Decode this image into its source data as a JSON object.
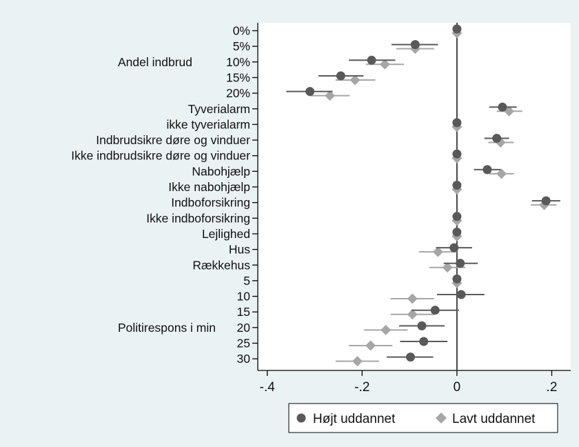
{
  "chart_data": {
    "type": "scatter",
    "orientation": "horizontal-coefficient-plot",
    "title": "",
    "xlabel": "",
    "ylabel": "",
    "xlim": [
      -0.42,
      0.24
    ],
    "xticks": [
      {
        "value": -0.4,
        "label": "-.4"
      },
      {
        "value": -0.2,
        "label": "-.2"
      },
      {
        "value": 0,
        "label": "0"
      },
      {
        "value": 0.2,
        "label": ".2"
      }
    ],
    "reference_line_x": 0,
    "categories": [
      "0%",
      "5%",
      "10%",
      "15%",
      "20%",
      "Tyverialarm",
      "ikke tyverialarm",
      "Indbrudsikre døre og vinduer",
      "Ikke indbrudsikre døre og vinduer",
      "Nabohjælp",
      "Ikke nabohjælp",
      "Indboforsikring",
      "Ikke indboforsikring",
      "Lejlighed",
      "Hus",
      "Rækkehus",
      "5",
      "10",
      "15",
      "20",
      "25",
      "30"
    ],
    "groups": [
      {
        "label": "Andel indbrud",
        "center_index": 2
      },
      {
        "label": "Politirespons i min",
        "center_index": 19
      }
    ],
    "series": [
      {
        "name": "Højt uddannet",
        "marker": "circle",
        "color": "#595959",
        "points": [
          {
            "estimate": 0.0,
            "lo": 0.0,
            "hi": 0.0
          },
          {
            "estimate": -0.088,
            "lo": -0.138,
            "hi": -0.04
          },
          {
            "estimate": -0.18,
            "lo": -0.228,
            "hi": -0.13
          },
          {
            "estimate": -0.245,
            "lo": -0.292,
            "hi": -0.197
          },
          {
            "estimate": -0.31,
            "lo": -0.36,
            "hi": -0.262
          },
          {
            "estimate": 0.096,
            "lo": 0.068,
            "hi": 0.126
          },
          {
            "estimate": 0.0,
            "lo": 0.0,
            "hi": 0.0
          },
          {
            "estimate": 0.084,
            "lo": 0.058,
            "hi": 0.11
          },
          {
            "estimate": 0.0,
            "lo": 0.0,
            "hi": 0.0
          },
          {
            "estimate": 0.064,
            "lo": 0.036,
            "hi": 0.092
          },
          {
            "estimate": 0.0,
            "lo": 0.0,
            "hi": 0.0
          },
          {
            "estimate": 0.188,
            "lo": 0.158,
            "hi": 0.218
          },
          {
            "estimate": 0.0,
            "lo": 0.0,
            "hi": 0.0
          },
          {
            "estimate": 0.0,
            "lo": 0.0,
            "hi": 0.0
          },
          {
            "estimate": -0.006,
            "lo": -0.044,
            "hi": 0.032
          },
          {
            "estimate": 0.007,
            "lo": -0.028,
            "hi": 0.044
          },
          {
            "estimate": 0.0,
            "lo": 0.0,
            "hi": 0.0
          },
          {
            "estimate": 0.009,
            "lo": -0.042,
            "hi": 0.058
          },
          {
            "estimate": -0.046,
            "lo": -0.096,
            "hi": 0.004
          },
          {
            "estimate": -0.074,
            "lo": -0.122,
            "hi": -0.026
          },
          {
            "estimate": -0.07,
            "lo": -0.12,
            "hi": -0.02
          },
          {
            "estimate": -0.098,
            "lo": -0.148,
            "hi": -0.05
          }
        ]
      },
      {
        "name": "Lavt uddannet",
        "marker": "diamond",
        "color": "#a6a6a6",
        "points": [
          {
            "estimate": 0.0,
            "lo": 0.0,
            "hi": 0.0
          },
          {
            "estimate": -0.088,
            "lo": -0.128,
            "hi": -0.048
          },
          {
            "estimate": -0.152,
            "lo": -0.192,
            "hi": -0.112
          },
          {
            "estimate": -0.215,
            "lo": -0.256,
            "hi": -0.172
          },
          {
            "estimate": -0.268,
            "lo": -0.31,
            "hi": -0.226
          },
          {
            "estimate": 0.11,
            "lo": 0.084,
            "hi": 0.138
          },
          {
            "estimate": 0.0,
            "lo": 0.0,
            "hi": 0.0
          },
          {
            "estimate": 0.092,
            "lo": 0.066,
            "hi": 0.12
          },
          {
            "estimate": 0.0,
            "lo": 0.0,
            "hi": 0.0
          },
          {
            "estimate": 0.094,
            "lo": 0.068,
            "hi": 0.12
          },
          {
            "estimate": 0.0,
            "lo": 0.0,
            "hi": 0.0
          },
          {
            "estimate": 0.184,
            "lo": 0.156,
            "hi": 0.21
          },
          {
            "estimate": 0.0,
            "lo": 0.0,
            "hi": 0.0
          },
          {
            "estimate": 0.0,
            "lo": 0.0,
            "hi": 0.0
          },
          {
            "estimate": -0.04,
            "lo": -0.08,
            "hi": 0.0
          },
          {
            "estimate": -0.02,
            "lo": -0.058,
            "hi": 0.018
          },
          {
            "estimate": 0.0,
            "lo": 0.0,
            "hi": 0.0
          },
          {
            "estimate": -0.094,
            "lo": -0.14,
            "hi": -0.048
          },
          {
            "estimate": -0.094,
            "lo": -0.14,
            "hi": -0.048
          },
          {
            "estimate": -0.15,
            "lo": -0.196,
            "hi": -0.104
          },
          {
            "estimate": -0.182,
            "lo": -0.228,
            "hi": -0.136
          },
          {
            "estimate": -0.21,
            "lo": -0.256,
            "hi": -0.164
          }
        ]
      }
    ],
    "legend": {
      "position": "bottom",
      "entries": [
        "Højt uddannet",
        "Lavt uddannet"
      ]
    },
    "grid": false,
    "colors": {
      "background": "#eaf2f3",
      "plot_background": "#ffffff",
      "axis": "#000000",
      "reference_line": "#444444"
    }
  }
}
